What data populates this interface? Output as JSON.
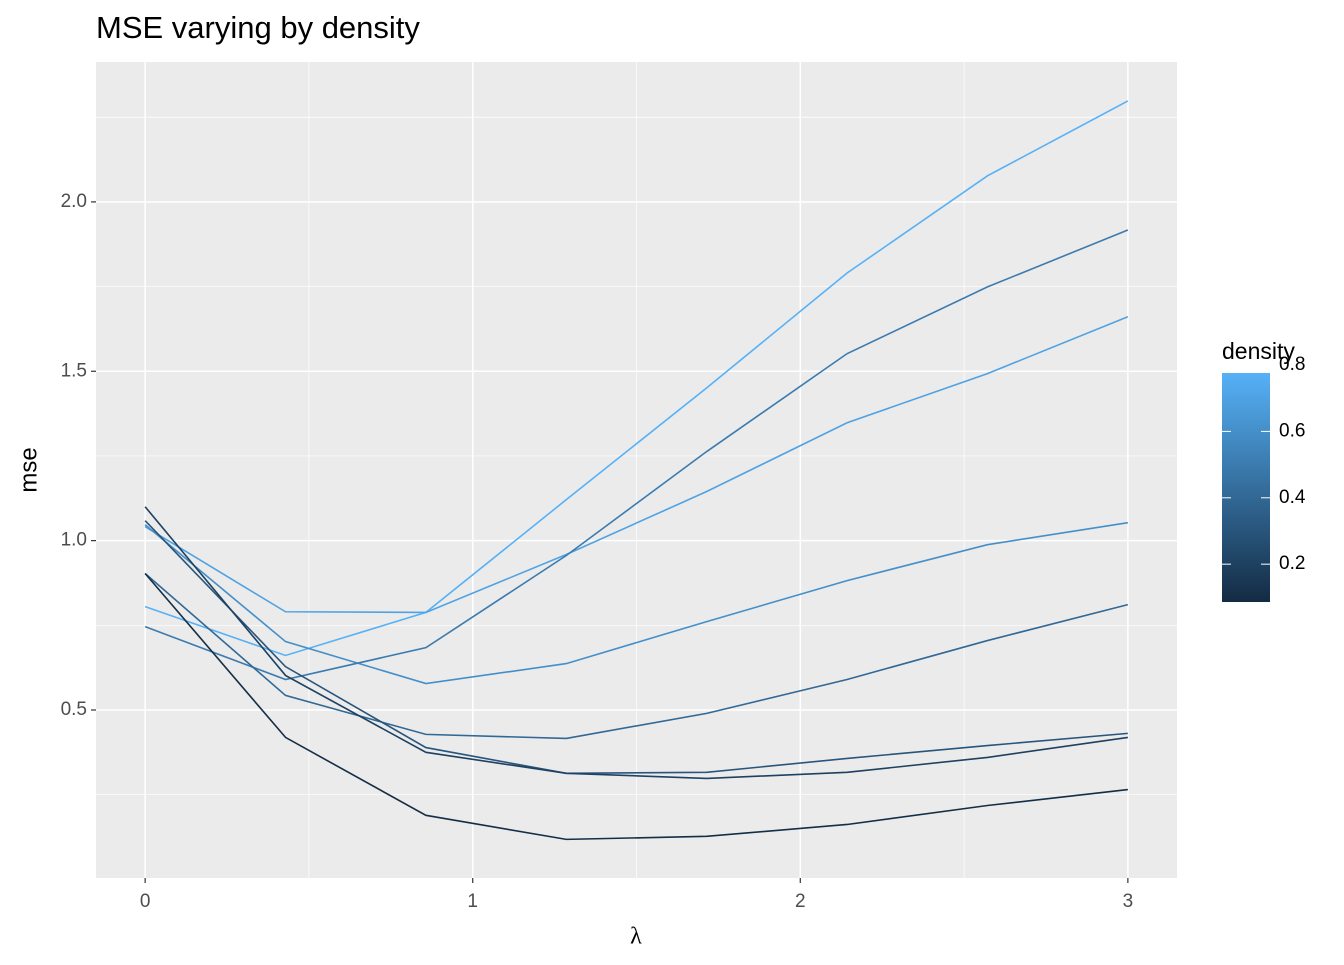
{
  "chart_data": {
    "type": "line",
    "title": "MSE varying by density",
    "x_label": "λ",
    "y_label": "mse",
    "x": [
      0,
      0.4286,
      0.8571,
      1.2857,
      1.7143,
      2.1429,
      2.5714,
      3
    ],
    "series": [
      {
        "color": "#56B1F7",
        "values": [
          0.805,
          0.661,
          0.788,
          1.121,
          1.451,
          1.79,
          2.077,
          2.298
        ]
      },
      {
        "color": "#4FA2E3",
        "values": [
          1.041,
          0.79,
          0.788,
          0.959,
          1.145,
          1.348,
          1.493,
          1.661
        ]
      },
      {
        "color": "#458FC9",
        "values": [
          1.047,
          0.702,
          0.578,
          0.637,
          0.761,
          0.882,
          0.988,
          1.053
        ]
      },
      {
        "color": "#3B7BAF",
        "values": [
          0.746,
          0.59,
          0.684,
          0.956,
          1.263,
          1.552,
          1.749,
          1.917
        ]
      },
      {
        "color": "#316895",
        "values": [
          0.903,
          0.543,
          0.428,
          0.416,
          0.49,
          0.59,
          0.705,
          0.811
        ]
      },
      {
        "color": "#28557B",
        "values": [
          1.059,
          0.628,
          0.389,
          0.313,
          0.316,
          0.357,
          0.395,
          0.431
        ]
      },
      {
        "color": "#1E4161",
        "values": [
          1.1,
          0.602,
          0.375,
          0.313,
          0.298,
          0.316,
          0.36,
          0.419
        ]
      },
      {
        "color": "#142E47",
        "values": [
          0.903,
          0.419,
          0.189,
          0.118,
          0.127,
          0.162,
          0.218,
          0.265
        ]
      }
    ],
    "xlim": [
      -0.15,
      3.15
    ],
    "xticks": [
      0,
      1,
      2,
      3
    ],
    "ylim": [
      0.004,
      2.413
    ],
    "yticks": [
      {
        "value": 0.5,
        "label": "0.5"
      },
      {
        "value": 1,
        "label": "1.0"
      },
      {
        "value": 1.5,
        "label": "1.5"
      },
      {
        "value": 2,
        "label": "2.0"
      }
    ],
    "grid": true,
    "colorbar": {
      "title": "density",
      "lim": [
        0.086,
        0.776
      ],
      "ticks": [
        0.2,
        0.4,
        0.6,
        0.8
      ],
      "colors": [
        "#132B43",
        "#56B1F7"
      ]
    }
  }
}
